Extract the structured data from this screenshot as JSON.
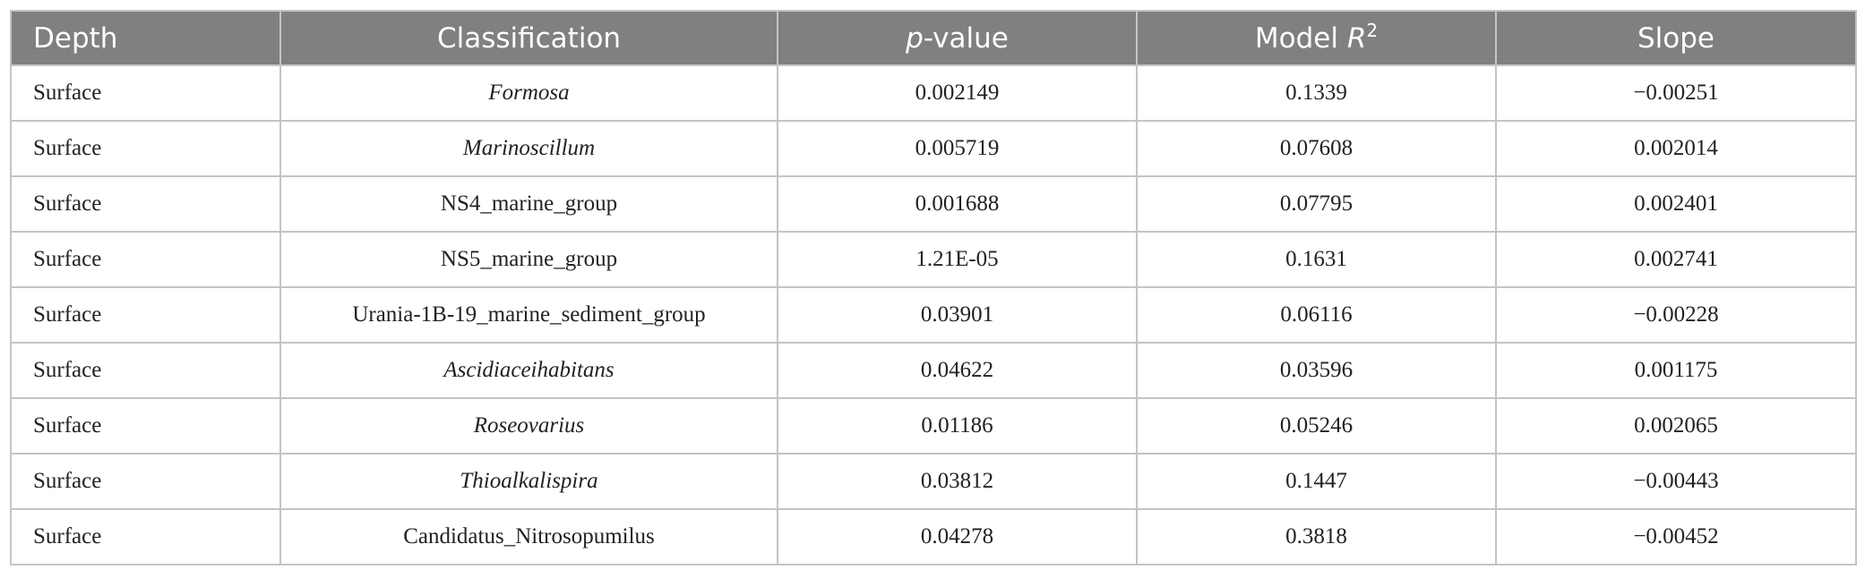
{
  "table": {
    "columns": [
      [
        {
          "text": "Depth"
        }
      ],
      [
        {
          "text": "Classification"
        }
      ],
      [
        {
          "text": "p",
          "italic": true
        },
        {
          "text": "-value"
        }
      ],
      [
        {
          "text": "Model "
        },
        {
          "text": "R",
          "italic": true
        },
        {
          "text": "2",
          "sup": true
        }
      ],
      [
        {
          "text": "Slope"
        }
      ]
    ],
    "rows": [
      {
        "depth": "Surface",
        "classification": "Formosa",
        "italic": true,
        "p_value": "0.002149",
        "r2": "0.1339",
        "slope": "−0.00251"
      },
      {
        "depth": "Surface",
        "classification": "Marinoscillum",
        "italic": true,
        "p_value": "0.005719",
        "r2": "0.07608",
        "slope": "0.002014"
      },
      {
        "depth": "Surface",
        "classification": "NS4_marine_group",
        "italic": false,
        "p_value": "0.001688",
        "r2": "0.07795",
        "slope": "0.002401"
      },
      {
        "depth": "Surface",
        "classification": "NS5_marine_group",
        "italic": false,
        "p_value": "1.21E-05",
        "r2": "0.1631",
        "slope": "0.002741"
      },
      {
        "depth": "Surface",
        "classification": "Urania-1B-19_marine_sediment_group",
        "italic": false,
        "p_value": "0.03901",
        "r2": "0.06116",
        "slope": "−0.00228"
      },
      {
        "depth": "Surface",
        "classification": "Ascidiaceihabitans",
        "italic": true,
        "p_value": "0.04622",
        "r2": "0.03596",
        "slope": "0.001175"
      },
      {
        "depth": "Surface",
        "classification": "Roseovarius",
        "italic": true,
        "p_value": "0.01186",
        "r2": "0.05246",
        "slope": "0.002065"
      },
      {
        "depth": "Surface",
        "classification": "Thioalkalispira",
        "italic": true,
        "p_value": "0.03812",
        "r2": "0.1447",
        "slope": "−0.00443"
      },
      {
        "depth": "Surface",
        "classification": "Candidatus_Nitrosopumilus",
        "italic": false,
        "p_value": "0.04278",
        "r2": "0.3818",
        "slope": "−0.00452"
      }
    ]
  }
}
